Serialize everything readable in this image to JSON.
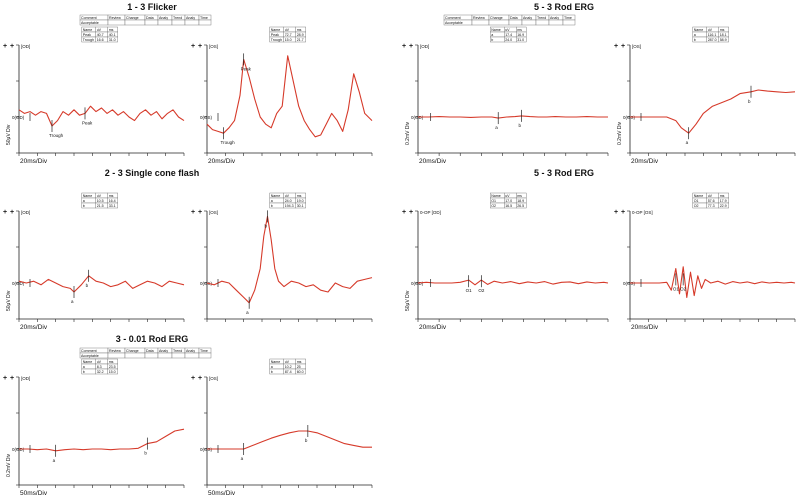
{
  "colors": {
    "trace": "#d63a2a",
    "axis": "#222222",
    "text": "#111111",
    "grid": "#666666"
  },
  "chart_data": [
    {
      "type": "line",
      "title": "1 - 3 Flicker",
      "status_table": {
        "headers": [
          "Comment",
          "Review",
          "Change",
          "Data",
          "Analy",
          "Trend",
          "Analy",
          "Time"
        ],
        "row": [
          "Acceptable",
          "",
          "",
          "",
          "",
          "",
          "",
          ""
        ]
      },
      "panels": [
        {
          "label": "[OD]",
          "baseline_label": "0(OD)",
          "ylabel": "50μV Div",
          "xlabel": "20ms/Div",
          "table": {
            "headers": [
              "Name",
              "uV",
              "ms"
            ],
            "rows": [
              [
                "Peak",
                "40.7",
                "40.1"
              ],
              [
                "Trough",
                "16.6",
                "31.0"
              ]
            ]
          },
          "markers": [
            {
              "label": "Trough",
              "x": 1.8,
              "y": -0.25
            },
            {
              "label": "Peak",
              "x": 3.6,
              "y": 0.1
            }
          ],
          "x": [
            0.0,
            0.3,
            0.6,
            0.9,
            1.2,
            1.5,
            1.8,
            2.1,
            2.4,
            2.7,
            3.0,
            3.3,
            3.6,
            3.9,
            4.2,
            4.5,
            4.8,
            5.1,
            5.4,
            5.7,
            6.0,
            6.3,
            6.6,
            6.9,
            7.2,
            7.5,
            7.8,
            8.1,
            8.4,
            8.7,
            9.0
          ],
          "y": [
            0.2,
            0.1,
            0.15,
            0.05,
            0.15,
            0.1,
            -0.25,
            -0.1,
            0.15,
            0.05,
            0.2,
            0.05,
            0.1,
            0.3,
            0.15,
            0.25,
            0.1,
            0.2,
            0.05,
            0.15,
            0.0,
            -0.1,
            0.1,
            0.2,
            0.05,
            0.15,
            -0.05,
            0.1,
            0.2,
            0.0,
            -0.1
          ]
        },
        {
          "label": "[OS]",
          "baseline_label": "0(OS)",
          "ylabel": "",
          "xlabel": "20ms/Div",
          "table": {
            "headers": [
              "Name",
              "uV",
              "ms"
            ],
            "rows": [
              [
                "Peak",
                "72.7",
                "28.9"
              ],
              [
                "Trough",
                "15.0",
                "21.7"
              ]
            ]
          },
          "markers": [
            {
              "label": "Trough",
              "x": 0.9,
              "y": -0.45
            },
            {
              "label": "Peak",
              "x": 2.0,
              "y": 1.6
            }
          ],
          "x": [
            0.0,
            0.3,
            0.6,
            0.9,
            1.2,
            1.5,
            1.8,
            2.0,
            2.3,
            2.6,
            2.9,
            3.2,
            3.5,
            3.8,
            4.1,
            4.4,
            4.7,
            5.0,
            5.3,
            5.6,
            5.9,
            6.2,
            6.5,
            6.8,
            7.1,
            7.4,
            7.7,
            8.0,
            8.3,
            8.6,
            9.0
          ],
          "y": [
            -0.2,
            -0.35,
            -0.4,
            -0.45,
            -0.3,
            -0.1,
            0.6,
            1.6,
            1.1,
            0.5,
            0.0,
            -0.2,
            -0.3,
            0.1,
            0.3,
            1.7,
            1.0,
            0.3,
            -0.1,
            -0.35,
            -0.55,
            -0.5,
            -0.2,
            0.1,
            -0.1,
            -0.4,
            0.2,
            1.2,
            0.7,
            0.1,
            -0.1
          ]
        }
      ]
    },
    {
      "type": "line",
      "title": "2 - 3 Single cone flash",
      "panels": [
        {
          "label": "[OD]",
          "baseline_label": "0(OD)",
          "ylabel": "50μV Div",
          "xlabel": "20ms/Div",
          "table": {
            "headers": [
              "Name",
              "uV",
              "ms"
            ],
            "rows": [
              [
                "a",
                "10.5",
                "16.4"
              ],
              [
                "b",
                "21.5",
                "33.1"
              ]
            ]
          },
          "markers": [
            {
              "label": "a",
              "x": 3.0,
              "y": -0.25
            },
            {
              "label": "b",
              "x": 3.8,
              "y": 0.2
            }
          ],
          "x": [
            0.0,
            0.4,
            0.8,
            1.2,
            1.6,
            2.0,
            2.4,
            2.8,
            3.0,
            3.4,
            3.8,
            4.2,
            4.6,
            5.0,
            5.4,
            5.8,
            6.2,
            6.6,
            7.0,
            7.4,
            7.8,
            8.2,
            8.6,
            9.0
          ],
          "y": [
            0.05,
            0.0,
            0.05,
            -0.05,
            0.1,
            0.0,
            -0.1,
            -0.15,
            -0.25,
            -0.05,
            0.2,
            0.05,
            0.0,
            -0.1,
            -0.05,
            0.05,
            -0.15,
            -0.05,
            0.05,
            0.0,
            -0.1,
            0.05,
            0.0,
            -0.05
          ]
        },
        {
          "label": "[OS]",
          "baseline_label": "0(OS)",
          "ylabel": "",
          "xlabel": "",
          "table": {
            "headers": [
              "Name",
              "uV",
              "ms"
            ],
            "rows": [
              [
                "a",
                "24.0",
                "19.0"
              ],
              [
                "b",
                "194.3",
                "30.1"
              ]
            ]
          },
          "markers": [
            {
              "label": "a",
              "x": 2.3,
              "y": -0.55
            },
            {
              "label": "b",
              "x": 3.3,
              "y": 1.85
            }
          ],
          "x": [
            0.0,
            0.4,
            0.8,
            1.2,
            1.6,
            2.0,
            2.3,
            2.6,
            2.9,
            3.1,
            3.3,
            3.5,
            3.7,
            3.9,
            4.2,
            4.6,
            5.0,
            5.4,
            5.8,
            6.2,
            6.6,
            7.0,
            7.4,
            7.8,
            8.2,
            8.6,
            9.0
          ],
          "y": [
            0.0,
            -0.05,
            0.05,
            0.0,
            -0.2,
            -0.4,
            -0.55,
            -0.2,
            0.4,
            1.3,
            1.85,
            1.2,
            0.4,
            0.05,
            -0.1,
            0.05,
            0.0,
            -0.1,
            -0.05,
            -0.2,
            -0.25,
            0.0,
            -0.1,
            -0.15,
            0.05,
            0.1,
            0.15
          ]
        }
      ]
    },
    {
      "type": "line",
      "title": "3 - 0.01 Rod ERG",
      "status_table": {
        "headers": [
          "Comment",
          "Review",
          "Change",
          "Data",
          "Analy",
          "Trend",
          "Analy",
          "Time"
        ],
        "row": [
          "Acceptable",
          "",
          "",
          "",
          "",
          "",
          "",
          ""
        ]
      },
      "panels": [
        {
          "label": "[OD]",
          "baseline_label": "0(OD)",
          "ylabel": "0.2mV Div",
          "xlabel": "50ms/Div",
          "table": {
            "headers": [
              "Name",
              "uV",
              "ms"
            ],
            "rows": [
              [
                "a",
                "8.3",
                "23.5"
              ],
              [
                "b",
                "32.2",
                "15.0"
              ]
            ]
          },
          "markers": [
            {
              "label": "a",
              "x": 2.0,
              "y": -0.05
            },
            {
              "label": "b",
              "x": 7.0,
              "y": 0.15
            }
          ],
          "x": [
            0.0,
            0.5,
            1.0,
            1.5,
            2.0,
            2.5,
            3.0,
            3.5,
            4.0,
            4.5,
            5.0,
            5.5,
            6.0,
            6.5,
            7.0,
            7.5,
            8.0,
            8.5,
            9.0
          ],
          "y": [
            0.0,
            0.0,
            -0.02,
            0.0,
            -0.05,
            -0.02,
            0.0,
            -0.02,
            0.0,
            0.0,
            -0.02,
            0.0,
            0.0,
            0.02,
            0.15,
            0.2,
            0.35,
            0.5,
            0.55
          ]
        },
        {
          "label": "[OS]",
          "baseline_label": "0(OS)",
          "ylabel": "",
          "xlabel": "50ms/Div",
          "table": {
            "headers": [
              "Name",
              "uV",
              "ms"
            ],
            "rows": [
              [
                "a",
                "10.2",
                "25"
              ],
              [
                "b",
                "87.4",
                "60.0"
              ]
            ]
          },
          "markers": [
            {
              "label": "a",
              "x": 2.0,
              "y": 0.0
            },
            {
              "label": "b",
              "x": 5.5,
              "y": 0.5
            }
          ],
          "x": [
            0.0,
            0.5,
            1.0,
            1.5,
            2.0,
            2.5,
            3.0,
            3.5,
            4.0,
            4.5,
            5.0,
            5.5,
            6.0,
            6.5,
            7.0,
            7.5,
            8.0,
            8.5,
            9.0
          ],
          "y": [
            0.0,
            0.0,
            0.0,
            0.0,
            0.0,
            0.1,
            0.2,
            0.3,
            0.38,
            0.45,
            0.5,
            0.5,
            0.45,
            0.35,
            0.25,
            0.15,
            0.1,
            0.05,
            0.05
          ]
        }
      ]
    },
    {
      "type": "line",
      "title": "5 - 3 Rod ERG",
      "status_table": {
        "headers": [
          "Comment",
          "Review",
          "Change",
          "Data",
          "Analy",
          "Trend",
          "Analy",
          "Time"
        ],
        "row": [
          "Acceptable",
          "",
          "",
          "",
          "",
          "",
          "",
          ""
        ]
      },
      "panels": [
        {
          "label": "[OD]",
          "baseline_label": "0(OD)",
          "ylabel": "0.2mV Div",
          "xlabel": "20ms/Div",
          "table": {
            "headers": [
              "Name",
              "uV",
              "ms"
            ],
            "rows": [
              [
                "a",
                "17.4",
                "16.9"
              ],
              [
                "b",
                "24.0",
                "31.0"
              ]
            ]
          },
          "markers": [
            {
              "label": "a",
              "x": 3.8,
              "y": -0.03
            },
            {
              "label": "b",
              "x": 4.9,
              "y": 0.03
            }
          ],
          "x": [
            0.0,
            0.5,
            1.0,
            1.5,
            2.0,
            2.5,
            3.0,
            3.5,
            3.8,
            4.2,
            4.6,
            4.9,
            5.3,
            5.7,
            6.1,
            6.5,
            7.0,
            7.5,
            8.0,
            8.5,
            9.0
          ],
          "y": [
            0.0,
            0.0,
            0.01,
            0.0,
            0.0,
            -0.01,
            0.0,
            0.0,
            -0.03,
            0.0,
            0.01,
            0.03,
            0.01,
            0.0,
            0.0,
            0.01,
            0.0,
            0.0,
            0.01,
            0.0,
            0.0
          ]
        },
        {
          "label": "[OS]",
          "baseline_label": "0(OS)",
          "ylabel": "0.2mV Div",
          "xlabel": "20ms/Div",
          "table": {
            "headers": [
              "Name",
              "uV",
              "ms"
            ],
            "rows": [
              [
                "a",
                "116.1",
                "18.1"
              ],
              [
                "b",
                "287.0",
                "58.9"
              ]
            ]
          },
          "markers": [
            {
              "label": "a",
              "x": 3.2,
              "y": -0.45
            },
            {
              "label": "b",
              "x": 6.6,
              "y": 0.7
            }
          ],
          "x": [
            0.0,
            0.5,
            1.0,
            1.5,
            2.0,
            2.5,
            2.8,
            3.2,
            3.6,
            4.0,
            4.5,
            5.0,
            5.5,
            6.0,
            6.6,
            7.0,
            7.5,
            8.0,
            8.5,
            9.0
          ],
          "y": [
            0.0,
            0.0,
            0.0,
            0.0,
            0.0,
            -0.1,
            -0.3,
            -0.45,
            -0.2,
            0.1,
            0.3,
            0.4,
            0.5,
            0.65,
            0.7,
            0.75,
            0.72,
            0.7,
            0.68,
            0.7
          ]
        }
      ]
    },
    {
      "type": "line",
      "title": "5 - 3 Rod ERG",
      "panels": [
        {
          "label": "0-OP [OD]",
          "baseline_label": "0(OD)",
          "ylabel": "50μV Div",
          "xlabel": "20ms/Div",
          "table": {
            "headers": [
              "Name",
              "uV",
              "ms"
            ],
            "rows": [
              [
                "O1",
                "17.0",
                "18.9"
              ],
              [
                "O2",
                "16.5",
                "26.5"
              ]
            ]
          },
          "markers": [
            {
              "label": "O1",
              "x": 2.4,
              "y": 0.05
            },
            {
              "label": "O2",
              "x": 3.0,
              "y": 0.05
            }
          ],
          "x": [
            0.0,
            0.4,
            0.8,
            1.2,
            1.6,
            2.0,
            2.4,
            2.7,
            3.0,
            3.3,
            3.6,
            4.0,
            4.4,
            4.8,
            5.2,
            5.6,
            6.0,
            6.4,
            6.8,
            7.2,
            7.6,
            8.0,
            8.4,
            8.8,
            9.0
          ],
          "y": [
            0.0,
            0.02,
            0.0,
            0.0,
            0.0,
            0.02,
            0.08,
            -0.05,
            0.08,
            -0.04,
            0.05,
            0.0,
            0.04,
            -0.02,
            0.03,
            0.0,
            0.04,
            -0.03,
            0.02,
            0.03,
            -0.02,
            0.03,
            0.0,
            0.02,
            0.0
          ]
        },
        {
          "label": "0-OP [OS]",
          "baseline_label": "0(OS)",
          "ylabel": "",
          "xlabel": "20ms/Div",
          "table": {
            "headers": [
              "Name",
              "uV",
              "ms"
            ],
            "rows": [
              [
                "O1",
                "57.6",
                "17.9"
              ],
              [
                "O2",
                "77.3",
                "22.9"
              ]
            ]
          },
          "markers": [
            {
              "label": "O1",
              "x": 2.5,
              "y": 0.1
            },
            {
              "label": "O2",
              "x": 2.9,
              "y": 0.1
            }
          ],
          "x": [
            0.0,
            0.4,
            0.8,
            1.2,
            1.6,
            2.0,
            2.25,
            2.5,
            2.7,
            2.9,
            3.1,
            3.3,
            3.5,
            3.7,
            3.9,
            4.1,
            4.4,
            4.8,
            5.2,
            5.6,
            6.0,
            6.4,
            6.8,
            7.2,
            7.6,
            8.0,
            8.4,
            8.8,
            9.0
          ],
          "y": [
            0.0,
            0.0,
            0.0,
            0.0,
            0.0,
            0.02,
            -0.2,
            0.4,
            -0.3,
            0.45,
            -0.4,
            0.3,
            -0.35,
            0.2,
            -0.15,
            0.1,
            0.0,
            0.05,
            -0.03,
            0.04,
            0.0,
            0.03,
            -0.02,
            0.03,
            0.0,
            0.02,
            0.0,
            0.02,
            0.0
          ]
        }
      ]
    }
  ]
}
